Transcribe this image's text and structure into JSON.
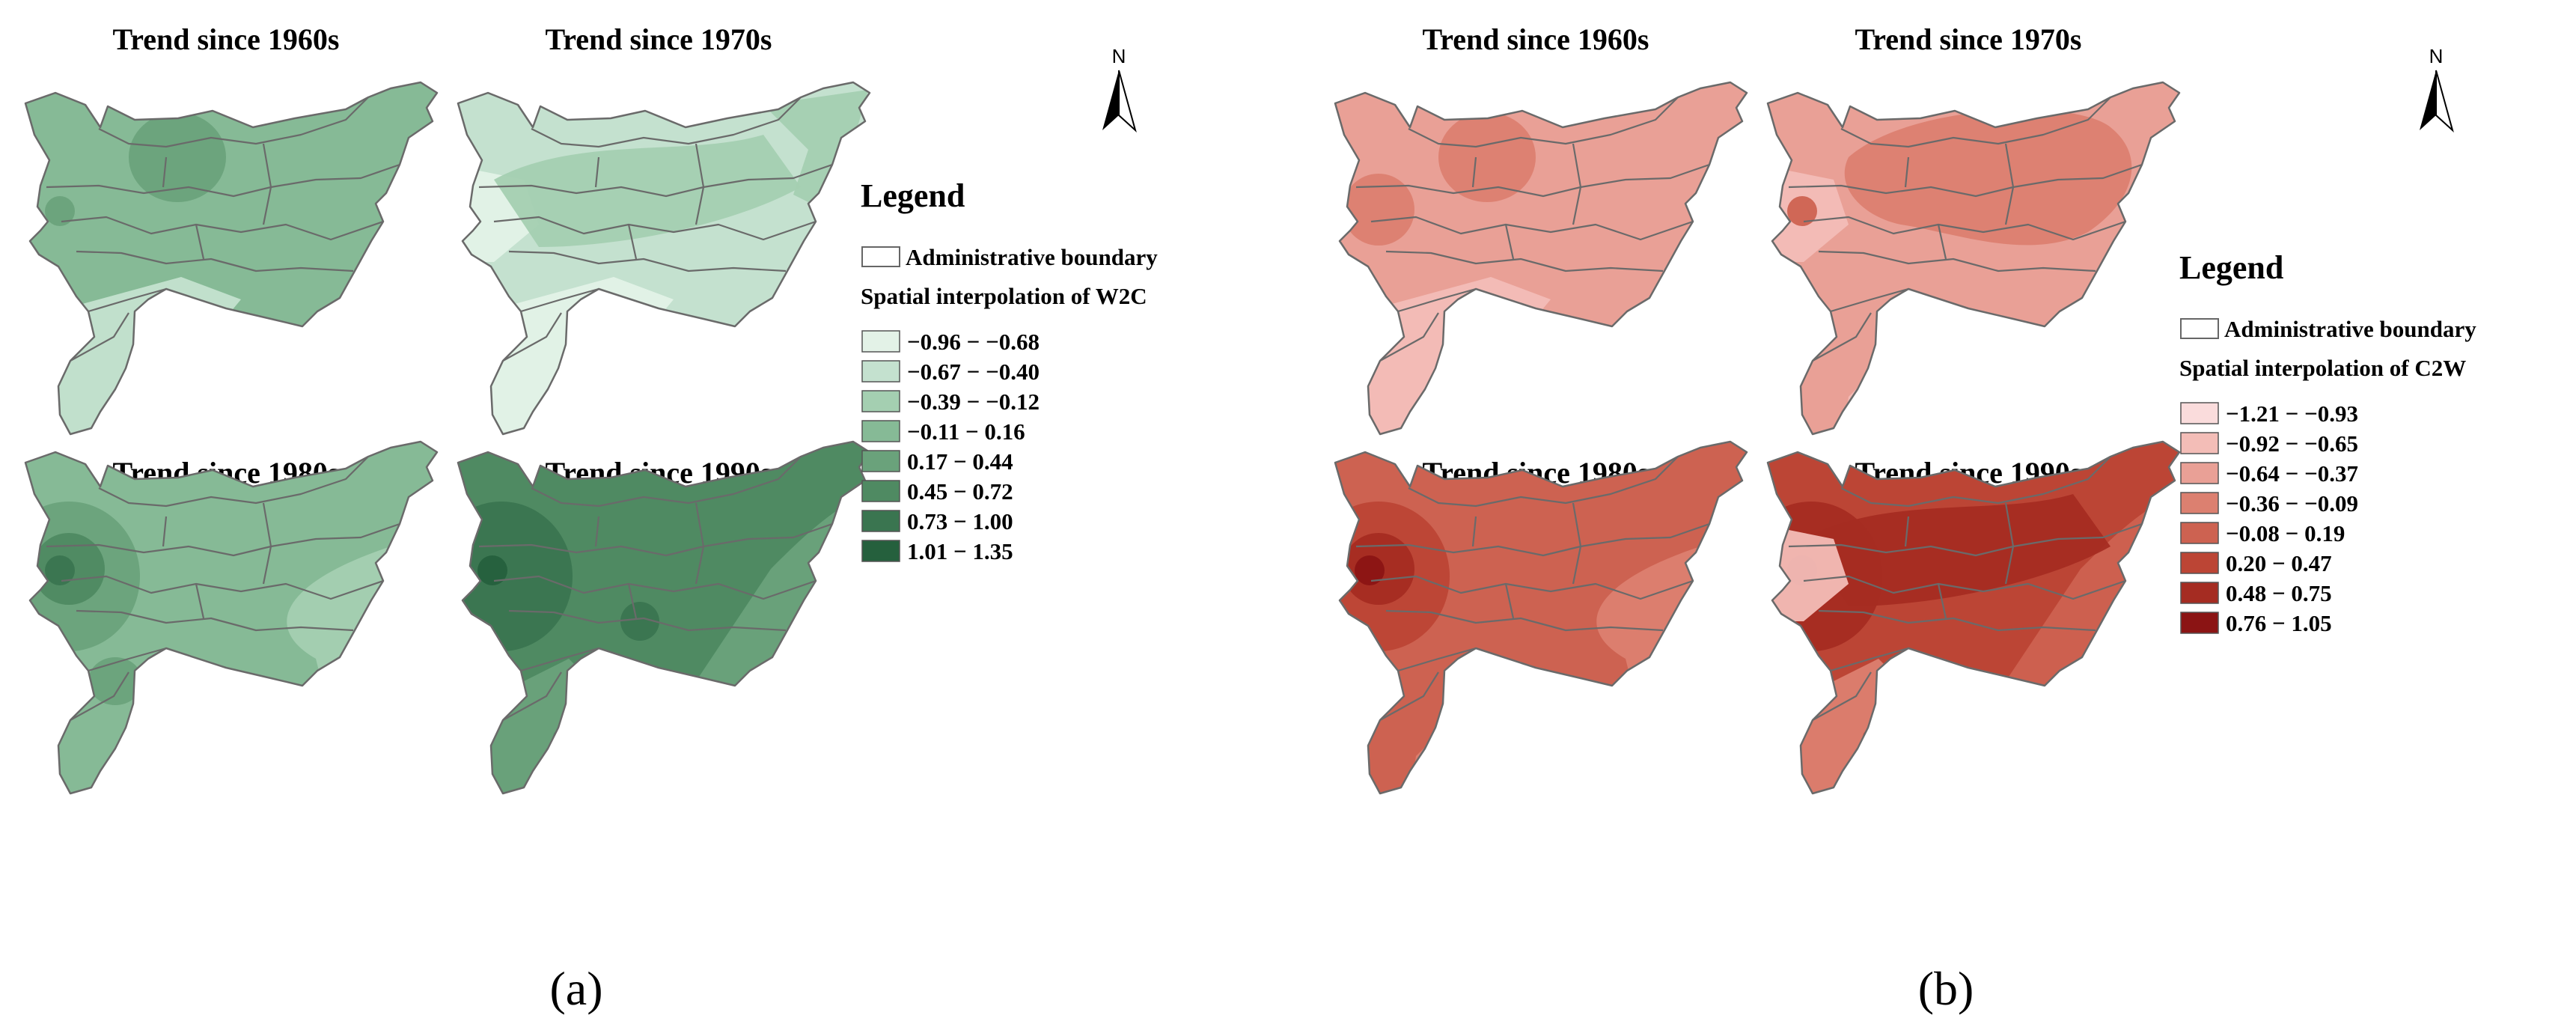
{
  "figure": {
    "panels": [
      {
        "id": "a",
        "label": "(a)",
        "north_label": "N",
        "maps": [
          {
            "title": "Trend since 1960s",
            "base_class": 3,
            "zones": [
              {
                "class": 1,
                "shape": "south-lobe"
              },
              {
                "class": 4,
                "shape": "north-center-blob"
              },
              {
                "class": 4,
                "shape": "west-spot"
              }
            ]
          },
          {
            "title": "Trend since 1970s",
            "base_class": 1,
            "zones": [
              {
                "class": 0,
                "shape": "south-lobe"
              },
              {
                "class": 0,
                "shape": "west-edge"
              },
              {
                "class": 2,
                "shape": "central-band"
              },
              {
                "class": 2,
                "shape": "northeast-arc"
              }
            ]
          },
          {
            "title": "Trend since 1980s",
            "base_class": 3,
            "zones": [
              {
                "class": 2,
                "shape": "east-side"
              },
              {
                "class": 4,
                "shape": "west-large"
              },
              {
                "class": 5,
                "shape": "west-medium"
              },
              {
                "class": 6,
                "shape": "west-spot"
              },
              {
                "class": 4,
                "shape": "southwest-spot"
              }
            ]
          },
          {
            "title": "Trend since 1990s",
            "base_class": 5,
            "zones": [
              {
                "class": 4,
                "shape": "southeast-corner"
              },
              {
                "class": 4,
                "shape": "south-lobe-edge"
              },
              {
                "class": 6,
                "shape": "west-large"
              },
              {
                "class": 7,
                "shape": "west-spot"
              },
              {
                "class": 6,
                "shape": "center-spot"
              }
            ]
          }
        ],
        "legend": {
          "title": "Legend",
          "boundary_label": "Administrative boundary",
          "subtitle": "Spatial interpolation of W2C",
          "classes": [
            {
              "label": "−0.96 − −0.68",
              "color": "#e3f2e7"
            },
            {
              "label": "−0.67 − −0.40",
              "color": "#c4e1cf"
            },
            {
              "label": "−0.39 − −0.12",
              "color": "#a4cfb1"
            },
            {
              "label": "−0.11 − 0.16",
              "color": "#86ba96"
            },
            {
              "label": "0.17 − 0.44",
              "color": "#6aa27b"
            },
            {
              "label": "0.45 − 0.72",
              "color": "#4f8a62"
            },
            {
              "label": "0.73 − 1.00",
              "color": "#3a7550"
            },
            {
              "label": "1.01 − 1.35",
              "color": "#25603d"
            }
          ]
        }
      },
      {
        "id": "b",
        "label": "(b)",
        "north_label": "N",
        "maps": [
          {
            "title": "Trend since 1960s",
            "base_class": 2,
            "zones": [
              {
                "class": 1,
                "shape": "south-lobe"
              },
              {
                "class": 3,
                "shape": "north-center-blob"
              },
              {
                "class": 3,
                "shape": "west-medium"
              }
            ]
          },
          {
            "title": "Trend since 1970s",
            "base_class": 2,
            "zones": [
              {
                "class": 3,
                "shape": "north-wide"
              },
              {
                "class": 1,
                "shape": "south-tip"
              },
              {
                "class": 1,
                "shape": "west-edge"
              },
              {
                "class": 4,
                "shape": "west-spot"
              }
            ]
          },
          {
            "title": "Trend since 1980s",
            "base_class": 4,
            "zones": [
              {
                "class": 3,
                "shape": "east-side"
              },
              {
                "class": 3,
                "shape": "south-tip"
              },
              {
                "class": 5,
                "shape": "west-large"
              },
              {
                "class": 6,
                "shape": "west-medium"
              },
              {
                "class": 7,
                "shape": "west-spot"
              }
            ]
          },
          {
            "title": "Trend since 1990s",
            "base_class": 5,
            "zones": [
              {
                "class": 4,
                "shape": "southeast-corner"
              },
              {
                "class": 3,
                "shape": "south-lobe-edge"
              },
              {
                "class": 6,
                "shape": "central-band"
              },
              {
                "class": 6,
                "shape": "west-large"
              },
              {
                "class": 7,
                "shape": "west-spot"
              },
              {
                "class": 1,
                "shape": "west-edge"
              }
            ]
          }
        ],
        "legend": {
          "title": "Legend",
          "boundary_label": "Administrative boundary",
          "subtitle": "Spatial interpolation of C2W",
          "classes": [
            {
              "label": "−1.21 − −0.93",
              "color": "#fadcdc"
            },
            {
              "label": "−0.92 − −0.65",
              "color": "#f3bdb7"
            },
            {
              "label": "−0.64 − −0.37",
              "color": "#e9a096"
            },
            {
              "label": "−0.36 − −0.09",
              "color": "#dc8070"
            },
            {
              "label": "−0.08 − 0.19",
              "color": "#cd6251"
            },
            {
              "label": "0.20 − 0.47",
              "color": "#bc4535"
            },
            {
              "label": "0.48 − 0.75",
              "color": "#a52c22"
            },
            {
              "label": "0.76 − 1.05",
              "color": "#8b1414"
            }
          ]
        }
      }
    ]
  }
}
